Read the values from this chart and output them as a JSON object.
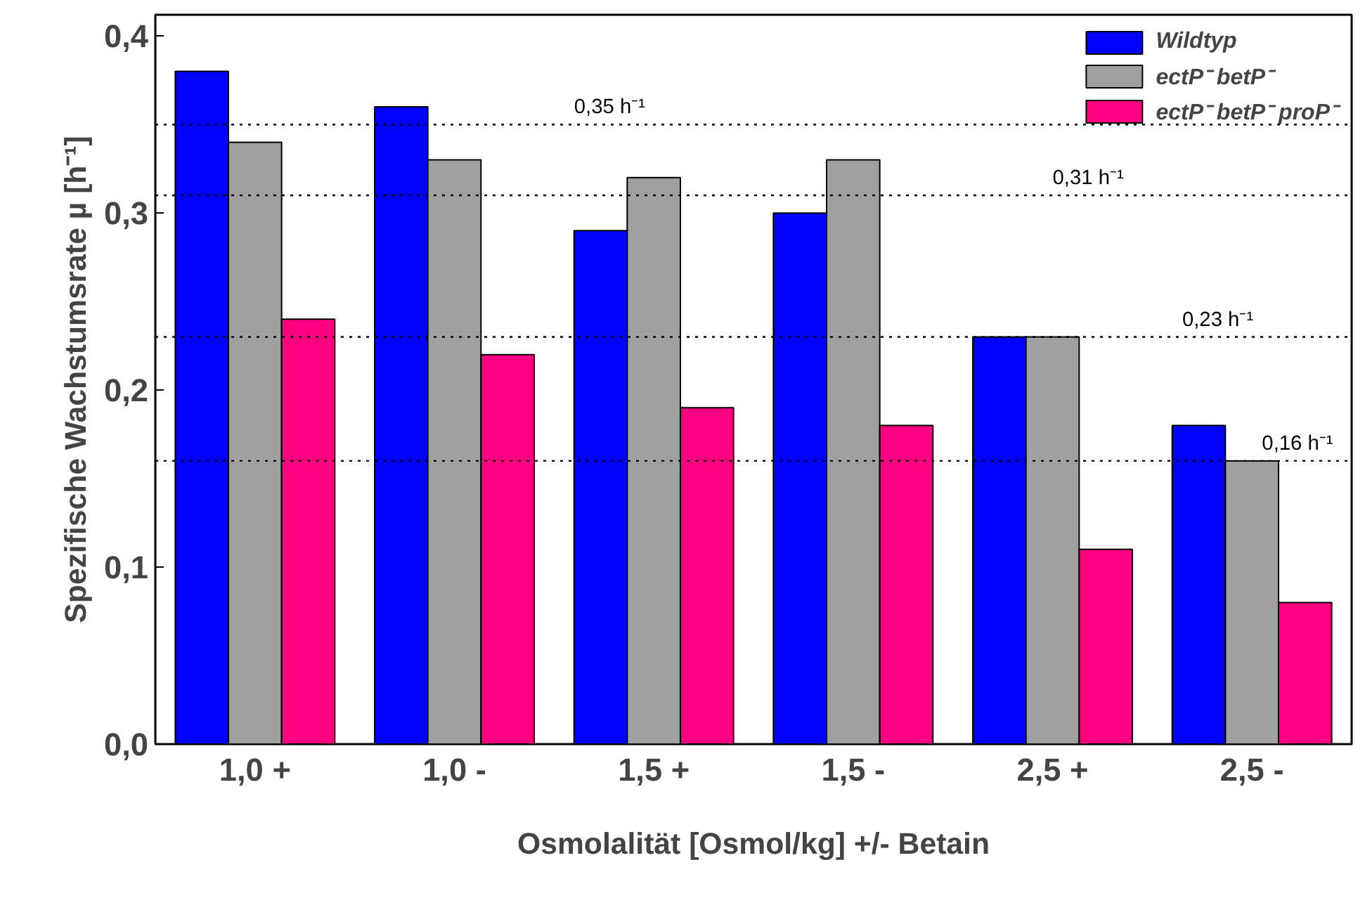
{
  "chart_data": {
    "type": "bar",
    "categories": [
      "1,0 +",
      "1,0 -",
      "1,5 +",
      "1,5 -",
      "2,5 +",
      "2,5 -"
    ],
    "series": [
      {
        "name": "Wildtyp",
        "color": "#0000ff",
        "values": [
          0.38,
          0.36,
          0.29,
          0.3,
          0.23,
          0.18
        ]
      },
      {
        "name": "ectP⁻ betP⁻",
        "color": "#a0a0a0",
        "values": [
          0.34,
          0.33,
          0.32,
          0.33,
          0.23,
          0.16
        ]
      },
      {
        "name": "ectP⁻ betP⁻ proP⁻",
        "color": "#ff0080",
        "values": [
          0.24,
          0.22,
          0.19,
          0.18,
          0.11,
          0.08
        ]
      }
    ],
    "ylim": [
      0,
      0.412
    ],
    "yticks": [
      {
        "value": 0,
        "label": "0,0"
      },
      {
        "value": 0.1,
        "label": "0,1"
      },
      {
        "value": 0.2,
        "label": "0,2"
      },
      {
        "value": 0.3,
        "label": "0,3"
      },
      {
        "value": 0.4,
        "label": "0,4"
      }
    ],
    "xlabel": "Osmolalität [Osmol/kg] +/- Betain",
    "ylabel": "Spezifische Wachstumsrate µ [h⁻¹]",
    "ref_lines": [
      {
        "axis": "y",
        "value": 0.35,
        "label": "0,35 h⁻¹",
        "line_style": "dotted"
      },
      {
        "axis": "y",
        "value": 0.31,
        "label": "0,31 h⁻¹",
        "line_style": "dotted"
      },
      {
        "axis": "y",
        "value": 0.23,
        "label": "0,23 h⁻¹",
        "line_style": "dotted"
      },
      {
        "axis": "y",
        "value": 0.16,
        "label": "0,16 h⁻¹",
        "line_style": "dotted"
      }
    ],
    "grid": false,
    "legend": "top right"
  }
}
